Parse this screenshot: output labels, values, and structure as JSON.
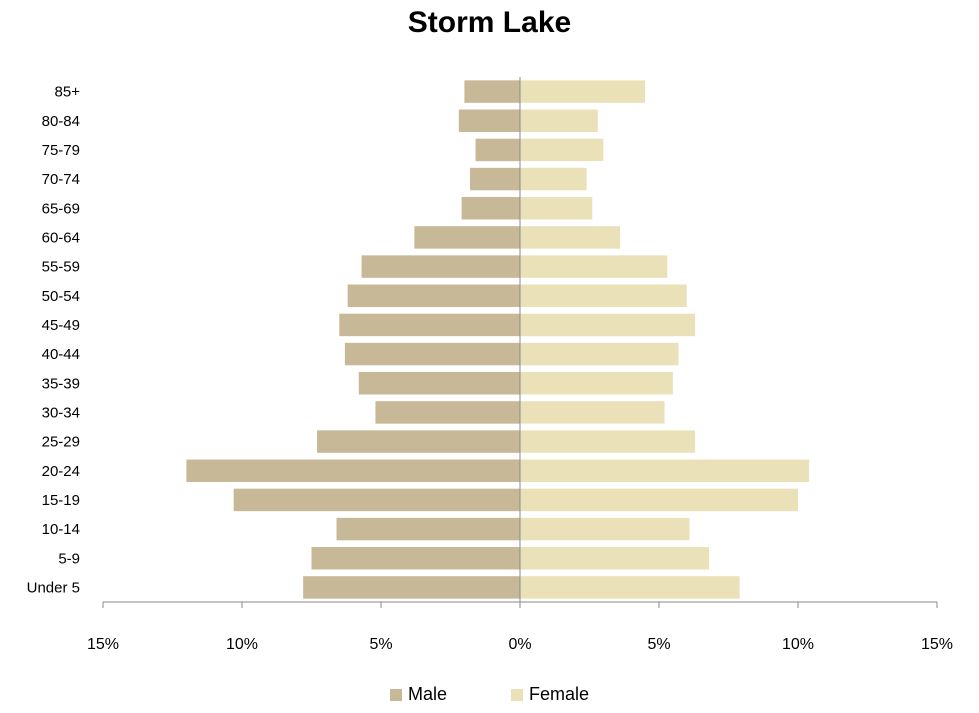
{
  "chart_data": {
    "type": "bar",
    "orientation": "horizontal-pyramid",
    "title": "Storm Lake",
    "categories": [
      "Under 5",
      "5-9",
      "10-14",
      "15-19",
      "20-24",
      "25-29",
      "30-34",
      "35-39",
      "40-44",
      "45-49",
      "50-54",
      "55-59",
      "60-64",
      "65-69",
      "70-74",
      "75-79",
      "80-84",
      "85+"
    ],
    "series": [
      {
        "name": "Male",
        "color": "#c7b997",
        "values": [
          7.8,
          7.5,
          6.6,
          10.3,
          12.0,
          7.3,
          5.2,
          5.8,
          6.3,
          6.5,
          6.2,
          5.7,
          3.8,
          2.1,
          1.8,
          1.6,
          2.2,
          2.0
        ]
      },
      {
        "name": "Female",
        "color": "#eae1b8",
        "values": [
          7.9,
          6.8,
          6.1,
          10.0,
          10.4,
          6.3,
          5.2,
          5.5,
          5.7,
          6.3,
          6.0,
          5.3,
          3.6,
          2.6,
          2.4,
          3.0,
          2.8,
          4.5
        ]
      }
    ],
    "xlim": [
      -15,
      15
    ],
    "xticks": [
      -15,
      -10,
      -5,
      0,
      5,
      10,
      15
    ],
    "xtick_labels": [
      "15%",
      "10%",
      "5%",
      "0%",
      "5%",
      "10%",
      "15%"
    ],
    "grid": false,
    "legend_position": "bottom"
  }
}
